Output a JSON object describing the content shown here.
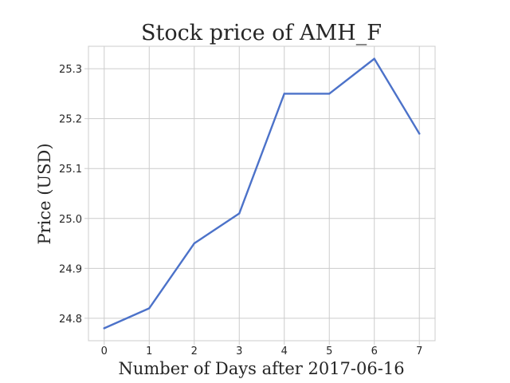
{
  "chart_data": {
    "type": "line",
    "title": "Stock price of AMH_F",
    "xlabel": "Number of Days after 2017-06-16",
    "ylabel": "Price (USD)",
    "x": [
      0,
      1,
      2,
      3,
      4,
      5,
      6,
      7
    ],
    "series": [
      {
        "values": [
          24.78,
          24.82,
          24.95,
          25.01,
          25.25,
          25.25,
          25.32,
          25.17
        ]
      }
    ],
    "xlim": [
      -0.35,
      7.35
    ],
    "ylim": [
      24.755,
      25.345
    ],
    "xticks": [
      0,
      1,
      2,
      3,
      4,
      5,
      6,
      7
    ],
    "yticks": [
      24.8,
      24.9,
      25.0,
      25.1,
      25.2,
      25.3
    ],
    "ytick_labels": [
      "24.8",
      "24.9",
      "25.0",
      "25.1",
      "25.2",
      "25.3"
    ],
    "grid": true,
    "line_color": "#4c72c9"
  }
}
